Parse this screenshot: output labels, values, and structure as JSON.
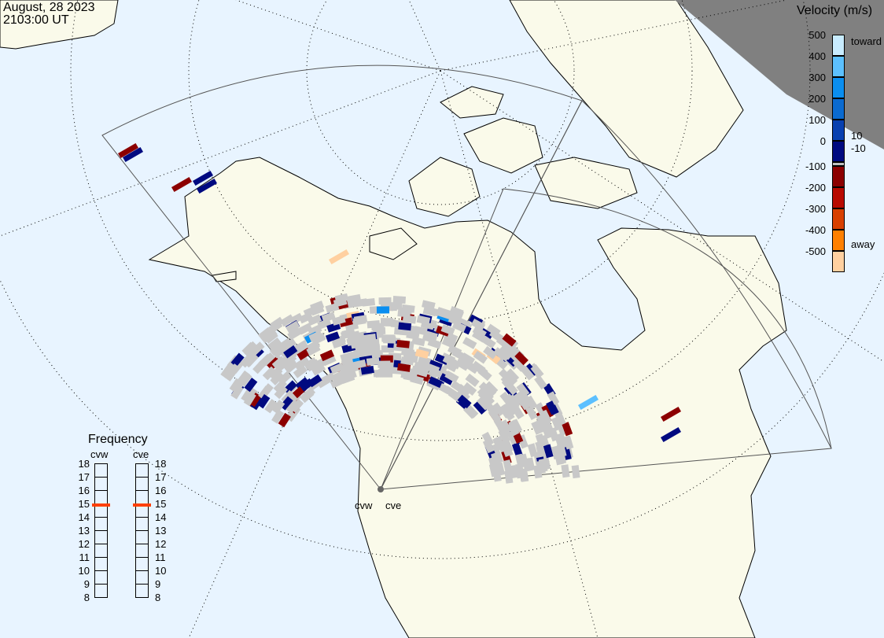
{
  "header": {
    "date": "August, 28 2023",
    "time": "2103:00 UT"
  },
  "velocity_legend": {
    "title": "Velocity (m/s)",
    "ticks": [
      "500",
      "400",
      "300",
      "200",
      "100",
      "0",
      "-100",
      "-200",
      "-300",
      "-400",
      "-500"
    ],
    "toward_label": "toward",
    "away_label": "away",
    "ground_scatter_upper": "10",
    "ground_scatter_lower": "-10",
    "colors": [
      "#c8ecff",
      "#5cc0ff",
      "#0a8ef0",
      "#0a6ad0",
      "#0840b0",
      "#000a80",
      "#c0c0c0",
      "#8c0000",
      "#b80a00",
      "#d84000",
      "#ff8000",
      "#ffd0a0"
    ]
  },
  "frequency_panel": {
    "title": "Frequency",
    "radars": [
      {
        "name": "cvw",
        "frequency_mhz": 14.9
      },
      {
        "name": "cve",
        "frequency_mhz": 14.9
      }
    ],
    "ticks": [
      "18",
      "17",
      "16",
      "15",
      "14",
      "13",
      "12",
      "11",
      "10",
      "9",
      "8"
    ],
    "marker_color": "#ff4000"
  },
  "map": {
    "radar_labels": [
      "cvw",
      "cve"
    ],
    "ocean_color": "#e8f4ff",
    "land_color": "#fafaea",
    "night_color": "#808080",
    "ground_scatter_color": "#c8c8c8"
  }
}
